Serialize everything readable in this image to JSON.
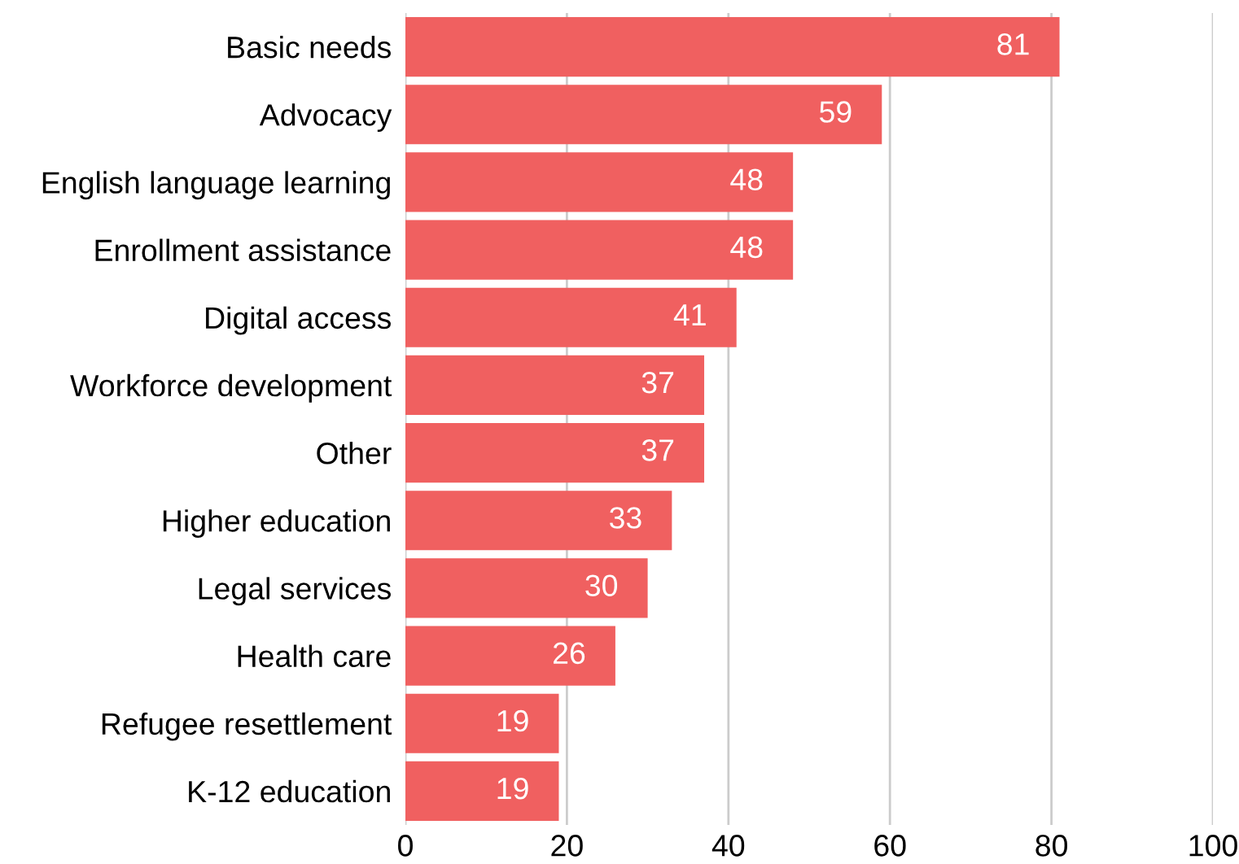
{
  "chart_data": {
    "type": "bar",
    "orientation": "horizontal",
    "categories": [
      "Basic needs",
      "Advocacy",
      "English language learning",
      "Enrollment assistance",
      "Digital access",
      "Workforce development",
      "Other",
      "Higher education",
      "Legal services",
      "Health care",
      "Refugee resettlement",
      "K-12 education"
    ],
    "values": [
      81,
      59,
      48,
      48,
      41,
      37,
      37,
      33,
      30,
      26,
      19,
      19
    ],
    "color": "#f06060",
    "xlim": [
      0,
      100
    ],
    "xticks": [
      0,
      20,
      40,
      60,
      80,
      100
    ],
    "grid": "x",
    "data_labels": true
  }
}
